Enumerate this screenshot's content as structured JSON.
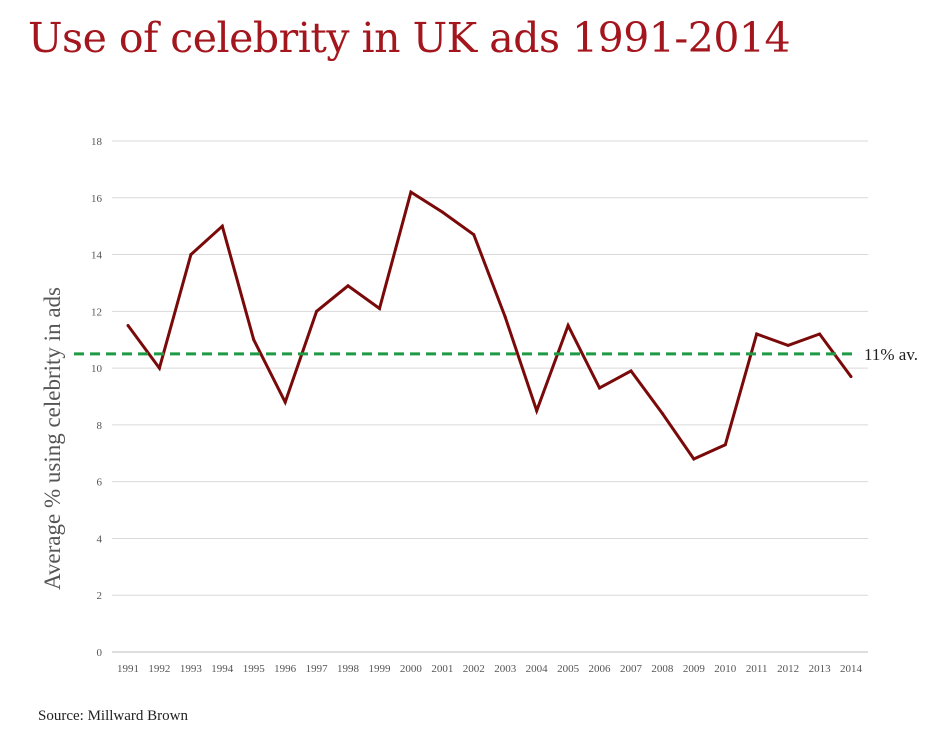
{
  "title": "Use of celebrity in UK ads 1991-2014",
  "source": "Source: Millward Brown",
  "colors": {
    "title": "#a3161d",
    "series": "#7a0a0a",
    "reference": "#1f9b45",
    "grid": "#d9d9d9"
  },
  "chart_data": {
    "type": "line",
    "title": "Use of celebrity in UK ads 1991-2014",
    "xlabel": "",
    "ylabel": "Average % using celebrity in ads",
    "ylim": [
      0,
      18
    ],
    "yticks": [
      "0",
      "2",
      "4",
      "6",
      "8",
      "10",
      "12",
      "14",
      "16",
      "18"
    ],
    "grid": true,
    "categories": [
      "1991",
      "1992",
      "1993",
      "1994",
      "1995",
      "1996",
      "1997",
      "1998",
      "1999",
      "2000",
      "2001",
      "2002",
      "2003",
      "2004",
      "2005",
      "2006",
      "2007",
      "2008",
      "2009",
      "2010",
      "2011",
      "2012",
      "2013",
      "2014"
    ],
    "series": [
      {
        "values": [
          11.5,
          10.0,
          14.0,
          15.0,
          11.0,
          8.8,
          12.0,
          12.9,
          12.1,
          16.2,
          15.5,
          14.7,
          11.8,
          8.5,
          11.5,
          9.3,
          9.9,
          8.4,
          6.8,
          7.3,
          11.2,
          10.8,
          11.2,
          9.7
        ]
      }
    ],
    "reference_line": {
      "value": 10.5,
      "label": "11% av.",
      "style": "dashed"
    }
  }
}
